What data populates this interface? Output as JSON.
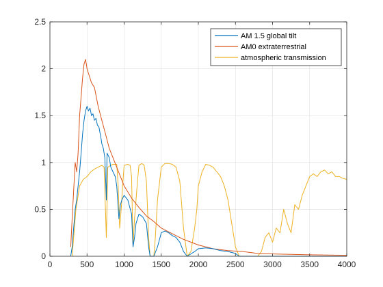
{
  "chart_data": {
    "type": "line",
    "xlim": [
      0,
      4000
    ],
    "ylim": [
      0,
      2.5
    ],
    "grid": true,
    "legend_placement": "top-right",
    "x_ticks": [
      "0",
      "500",
      "1000",
      "1500",
      "2000",
      "2500",
      "3000",
      "3500",
      "4000"
    ],
    "y_ticks": [
      "0",
      "0.5",
      "1",
      "1.5",
      "2",
      "2.5"
    ],
    "series": [
      {
        "name": "AM 1.5 global tilt",
        "color": "#0072BD",
        "points": [
          [
            280,
            0.0
          ],
          [
            300,
            0.1
          ],
          [
            320,
            0.3
          ],
          [
            340,
            0.5
          ],
          [
            360,
            0.6
          ],
          [
            380,
            0.75
          ],
          [
            400,
            0.9
          ],
          [
            420,
            1.1
          ],
          [
            440,
            1.3
          ],
          [
            460,
            1.45
          ],
          [
            480,
            1.55
          ],
          [
            500,
            1.6
          ],
          [
            520,
            1.55
          ],
          [
            540,
            1.58
          ],
          [
            560,
            1.5
          ],
          [
            580,
            1.52
          ],
          [
            600,
            1.45
          ],
          [
            620,
            1.47
          ],
          [
            640,
            1.4
          ],
          [
            660,
            1.38
          ],
          [
            690,
            1.25
          ],
          [
            700,
            1.2
          ],
          [
            720,
            1.15
          ],
          [
            740,
            1.05
          ],
          [
            760,
            0.6
          ],
          [
            770,
            1.1
          ],
          [
            800,
            1.05
          ],
          [
            820,
            0.95
          ],
          [
            850,
            0.9
          ],
          [
            880,
            0.85
          ],
          [
            900,
            0.75
          ],
          [
            930,
            0.4
          ],
          [
            950,
            0.55
          ],
          [
            970,
            0.6
          ],
          [
            1000,
            0.65
          ],
          [
            1050,
            0.6
          ],
          [
            1100,
            0.45
          ],
          [
            1120,
            0.1
          ],
          [
            1140,
            0.2
          ],
          [
            1160,
            0.35
          ],
          [
            1200,
            0.45
          ],
          [
            1250,
            0.42
          ],
          [
            1300,
            0.35
          ],
          [
            1330,
            0.1
          ],
          [
            1350,
            0.0
          ],
          [
            1400,
            0.0
          ],
          [
            1450,
            0.1
          ],
          [
            1500,
            0.25
          ],
          [
            1550,
            0.27
          ],
          [
            1600,
            0.25
          ],
          [
            1650,
            0.22
          ],
          [
            1700,
            0.2
          ],
          [
            1750,
            0.15
          ],
          [
            1800,
            0.05
          ],
          [
            1850,
            0.0
          ],
          [
            1950,
            0.05
          ],
          [
            2000,
            0.08
          ],
          [
            2100,
            0.09
          ],
          [
            2200,
            0.08
          ],
          [
            2300,
            0.06
          ],
          [
            2400,
            0.05
          ],
          [
            2500,
            0.03
          ],
          [
            2550,
            0.0
          ],
          [
            4000,
            0.0
          ]
        ]
      },
      {
        "name": "AM0 extraterrestrial",
        "color": "#D95319",
        "points": [
          [
            280,
            0.1
          ],
          [
            300,
            0.4
          ],
          [
            320,
            0.7
          ],
          [
            340,
            1.0
          ],
          [
            360,
            0.9
          ],
          [
            380,
            1.1
          ],
          [
            400,
            1.5
          ],
          [
            420,
            1.7
          ],
          [
            440,
            1.9
          ],
          [
            460,
            2.05
          ],
          [
            480,
            2.1
          ],
          [
            500,
            2.0
          ],
          [
            520,
            1.95
          ],
          [
            540,
            1.9
          ],
          [
            560,
            1.85
          ],
          [
            600,
            1.8
          ],
          [
            650,
            1.6
          ],
          [
            700,
            1.45
          ],
          [
            750,
            1.3
          ],
          [
            800,
            1.15
          ],
          [
            900,
            0.95
          ],
          [
            1000,
            0.75
          ],
          [
            1100,
            0.62
          ],
          [
            1200,
            0.52
          ],
          [
            1300,
            0.43
          ],
          [
            1400,
            0.37
          ],
          [
            1500,
            0.3
          ],
          [
            1600,
            0.26
          ],
          [
            1700,
            0.22
          ],
          [
            1800,
            0.18
          ],
          [
            1900,
            0.15
          ],
          [
            2000,
            0.12
          ],
          [
            2200,
            0.08
          ],
          [
            2400,
            0.06
          ],
          [
            2600,
            0.05
          ],
          [
            2800,
            0.03
          ],
          [
            3000,
            0.025
          ],
          [
            3500,
            0.015
          ],
          [
            4000,
            0.01
          ]
        ]
      },
      {
        "name": "atmospheric transmission",
        "color": "#EDB120",
        "points": [
          [
            300,
            0.0
          ],
          [
            320,
            0.2
          ],
          [
            350,
            0.5
          ],
          [
            400,
            0.75
          ],
          [
            450,
            0.82
          ],
          [
            500,
            0.85
          ],
          [
            550,
            0.9
          ],
          [
            600,
            0.93
          ],
          [
            650,
            0.95
          ],
          [
            700,
            0.97
          ],
          [
            730,
            0.95
          ],
          [
            760,
            0.2
          ],
          [
            780,
            0.95
          ],
          [
            820,
            0.97
          ],
          [
            850,
            0.98
          ],
          [
            900,
            0.98
          ],
          [
            920,
            0.75
          ],
          [
            940,
            0.3
          ],
          [
            960,
            0.5
          ],
          [
            980,
            0.75
          ],
          [
            1000,
            0.97
          ],
          [
            1050,
            0.98
          ],
          [
            1080,
            0.97
          ],
          [
            1100,
            0.85
          ],
          [
            1120,
            0.1
          ],
          [
            1140,
            0.4
          ],
          [
            1160,
            0.6
          ],
          [
            1180,
            0.8
          ],
          [
            1200,
            0.97
          ],
          [
            1240,
            0.99
          ],
          [
            1270,
            0.97
          ],
          [
            1300,
            0.8
          ],
          [
            1330,
            0.2
          ],
          [
            1350,
            0.0
          ],
          [
            1400,
            0.0
          ],
          [
            1420,
            0.2
          ],
          [
            1450,
            0.6
          ],
          [
            1500,
            0.95
          ],
          [
            1550,
            0.99
          ],
          [
            1600,
            0.99
          ],
          [
            1650,
            0.98
          ],
          [
            1700,
            0.95
          ],
          [
            1750,
            0.8
          ],
          [
            1800,
            0.3
          ],
          [
            1850,
            0.0
          ],
          [
            1900,
            0.05
          ],
          [
            1950,
            0.3
          ],
          [
            1980,
            0.5
          ],
          [
            2000,
            0.75
          ],
          [
            2050,
            0.9
          ],
          [
            2100,
            0.98
          ],
          [
            2150,
            0.97
          ],
          [
            2200,
            0.95
          ],
          [
            2250,
            0.9
          ],
          [
            2300,
            0.85
          ],
          [
            2350,
            0.75
          ],
          [
            2400,
            0.6
          ],
          [
            2450,
            0.35
          ],
          [
            2500,
            0.1
          ],
          [
            2550,
            0.0
          ],
          [
            2800,
            0.0
          ],
          [
            2850,
            0.05
          ],
          [
            2900,
            0.2
          ],
          [
            2950,
            0.25
          ],
          [
            3000,
            0.15
          ],
          [
            3050,
            0.3
          ],
          [
            3100,
            0.25
          ],
          [
            3150,
            0.5
          ],
          [
            3200,
            0.35
          ],
          [
            3250,
            0.25
          ],
          [
            3300,
            0.55
          ],
          [
            3350,
            0.5
          ],
          [
            3400,
            0.65
          ],
          [
            3450,
            0.75
          ],
          [
            3500,
            0.85
          ],
          [
            3550,
            0.88
          ],
          [
            3600,
            0.85
          ],
          [
            3650,
            0.9
          ],
          [
            3700,
            0.92
          ],
          [
            3750,
            0.88
          ],
          [
            3800,
            0.9
          ],
          [
            3850,
            0.85
          ],
          [
            3900,
            0.85
          ],
          [
            3950,
            0.83
          ],
          [
            4000,
            0.82
          ]
        ]
      }
    ]
  }
}
